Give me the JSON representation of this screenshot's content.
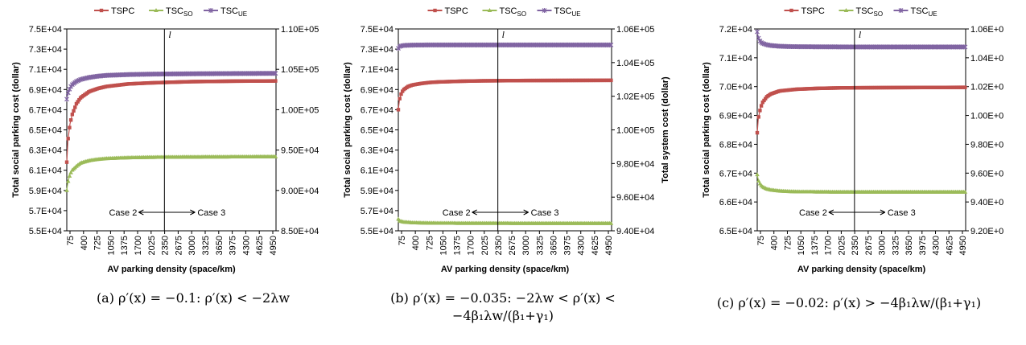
{
  "figure": {
    "x_label": "AV parking density (space/km)",
    "x_ticks": [
      "75",
      "400",
      "725",
      "1050",
      "1375",
      "1700",
      "2025",
      "2350",
      "2675",
      "3000",
      "3325",
      "3650",
      "3975",
      "4300",
      "4625",
      "4950"
    ],
    "legend": {
      "tspc": "TSPC",
      "tsc_so_base": "TSC",
      "tsc_so_sub": "SO",
      "tsc_ue_base": "TSC",
      "tsc_ue_sub": "UE"
    },
    "colors": {
      "TSPC": "#c0504d",
      "TSC_SO": "#9bbb59",
      "TSC_UE": "#8064a2"
    },
    "l_label": "l",
    "case2_label": "Case 2",
    "case3_label": "Case 3"
  },
  "chart_data": [
    {
      "panel": "a",
      "type": "line",
      "caption": "(a) ρ′(x) = −0.1: ρ′(x) < −2λw",
      "ylabel_left": "Total social parking cost (dollar)",
      "ylabel_right": "",
      "yticks_left": [
        "5.5E+04",
        "5.7E+04",
        "5.9E+04",
        "6.1E+04",
        "6.3E+04",
        "6.5E+04",
        "6.7E+04",
        "6.9E+04",
        "7.1E+04",
        "7.3E+04",
        "7.5E+04"
      ],
      "yticks_right": [
        "8.50E+04",
        "9.00E+04",
        "9.50E+04",
        "1.00E+05",
        "1.05E+05",
        "1.10E+05"
      ],
      "ylim_left": [
        55000,
        75000
      ],
      "ylim_right": [
        85000,
        110000
      ],
      "xlim": [
        75,
        4950
      ],
      "l_x": 2350,
      "series": [
        {
          "name": "TSPC",
          "axis": "left",
          "x": [
            75,
            100,
            150,
            200,
            300,
            400,
            600,
            800,
            1000,
            1500,
            2000,
            2350,
            3000,
            4000,
            4950
          ],
          "values": [
            61800,
            63900,
            65600,
            66500,
            67600,
            68200,
            68800,
            69100,
            69300,
            69550,
            69650,
            69700,
            69780,
            69830,
            69850
          ]
        },
        {
          "name": "TSC_SO",
          "axis": "right",
          "x": [
            75,
            100,
            150,
            200,
            300,
            400,
            600,
            800,
            1000,
            1500,
            2000,
            2350,
            3000,
            4000,
            4950
          ],
          "values": [
            90000,
            91000,
            92000,
            92500,
            93000,
            93400,
            93700,
            93850,
            93950,
            94050,
            94100,
            94120,
            94140,
            94160,
            94180
          ]
        },
        {
          "name": "TSC_UE",
          "axis": "right",
          "x": [
            75,
            100,
            150,
            200,
            300,
            400,
            600,
            800,
            1000,
            1500,
            2000,
            2350,
            3000,
            4000,
            4950
          ],
          "values": [
            101300,
            102000,
            102700,
            103100,
            103500,
            103750,
            104000,
            104150,
            104250,
            104350,
            104400,
            104420,
            104450,
            104480,
            104500
          ]
        }
      ]
    },
    {
      "panel": "b",
      "type": "line",
      "caption": "(b) ρ′(x) = −0.035: −2λw < ρ′(x) < −4β₁λw/(β₁+γ₁)",
      "ylabel_left": "Total social parking cost (dollar)",
      "ylabel_right": "Total system cost (dollar)",
      "yticks_left": [
        "5.5E+04",
        "5.7E+04",
        "5.9E+04",
        "6.1E+04",
        "6.3E+04",
        "6.5E+04",
        "6.7E+04",
        "6.9E+04",
        "7.1E+04",
        "7.3E+04",
        "7.5E+04"
      ],
      "yticks_right": [
        "9.40E+04",
        "9.60E+04",
        "9.80E+04",
        "1.00E+05",
        "1.02E+05",
        "1.04E+05",
        "1.06E+05"
      ],
      "ylim_left": [
        55000,
        75000
      ],
      "ylim_right": [
        94000,
        106000
      ],
      "xlim": [
        75,
        4950
      ],
      "l_x": 2350,
      "series": [
        {
          "name": "TSPC",
          "axis": "left",
          "x": [
            75,
            100,
            150,
            200,
            300,
            400,
            600,
            800,
            1000,
            1500,
            2000,
            2350,
            3000,
            4000,
            4950
          ],
          "values": [
            67000,
            68000,
            68700,
            69000,
            69300,
            69450,
            69600,
            69700,
            69750,
            69820,
            69860,
            69870,
            69890,
            69900,
            69910
          ]
        },
        {
          "name": "TSC_SO",
          "axis": "right",
          "x": [
            75,
            100,
            150,
            200,
            300,
            400,
            600,
            800,
            1000,
            1500,
            2000,
            2350,
            3000,
            4000,
            4950
          ],
          "values": [
            94700,
            94600,
            94550,
            94520,
            94500,
            94480,
            94470,
            94460,
            94455,
            94450,
            94448,
            94446,
            94444,
            94442,
            94440
          ]
        },
        {
          "name": "TSC_UE",
          "axis": "right",
          "x": [
            75,
            100,
            150,
            200,
            300,
            400,
            600,
            800,
            1000,
            1500,
            2000,
            2350,
            3000,
            4000,
            4950
          ],
          "values": [
            104850,
            104950,
            105000,
            105020,
            105030,
            105040,
            105045,
            105050,
            105050,
            105050,
            105050,
            105050,
            105050,
            105050,
            105050
          ]
        }
      ]
    },
    {
      "panel": "c",
      "type": "line",
      "caption": "(c) ρ′(x) = −0.02: ρ′(x) > −4β₁λw/(β₁+γ₁)",
      "ylabel_left": "Total social parking cost (dollar)",
      "ylabel_right": "",
      "yticks_left": [
        "6.5E+04",
        "6.6E+04",
        "6.7E+04",
        "6.8E+04",
        "6.9E+04",
        "7.0E+04",
        "7.1E+04",
        "7.2E+04"
      ],
      "yticks_right": [
        "9.20E+0",
        "9.40E+0",
        "9.60E+0",
        "9.80E+0",
        "1.00E+0",
        "1.02E+0",
        "1.04E+0",
        "1.06E+0"
      ],
      "ylim_left": [
        65000,
        72000
      ],
      "ylim_right": [
        92000,
        106000
      ],
      "xlim": [
        75,
        4950
      ],
      "l_x": 2350,
      "series": [
        {
          "name": "TSPC",
          "axis": "left",
          "x": [
            75,
            100,
            150,
            200,
            300,
            400,
            600,
            800,
            1000,
            1500,
            2000,
            2350,
            3000,
            4000,
            4950
          ],
          "values": [
            68400,
            68900,
            69250,
            69450,
            69650,
            69750,
            69850,
            69880,
            69910,
            69940,
            69955,
            69960,
            69965,
            69970,
            69975
          ]
        },
        {
          "name": "TSC_SO",
          "axis": "right",
          "x": [
            75,
            100,
            150,
            200,
            300,
            400,
            600,
            800,
            1000,
            1500,
            2000,
            2350,
            3000,
            4000,
            4950
          ],
          "values": [
            95900,
            95500,
            95200,
            95050,
            94900,
            94830,
            94760,
            94730,
            94710,
            94700,
            94690,
            94690,
            94690,
            94690,
            94690
          ]
        },
        {
          "name": "TSC_UE",
          "axis": "right",
          "x": [
            75,
            100,
            150,
            200,
            300,
            400,
            600,
            800,
            1000,
            1500,
            2000,
            2350,
            3000,
            4000,
            4950
          ],
          "values": [
            105800,
            105400,
            105100,
            105000,
            104900,
            104850,
            104800,
            104780,
            104770,
            104760,
            104755,
            104750,
            104750,
            104750,
            104750
          ]
        }
      ]
    }
  ]
}
